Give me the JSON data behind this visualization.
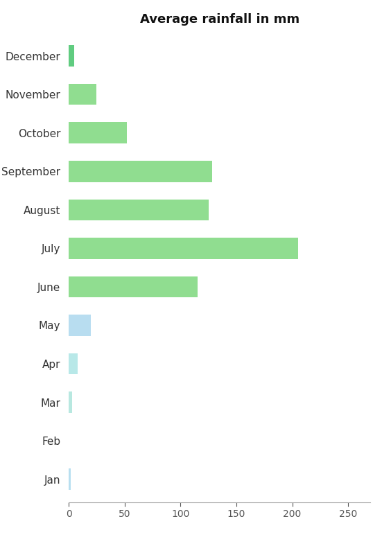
{
  "title": "Average rainfall in mm",
  "months": [
    "Jan",
    "Feb",
    "Mar",
    "Apr",
    "May",
    "June",
    "July",
    "August",
    "September",
    "October",
    "November",
    "December"
  ],
  "values": [
    2,
    0,
    3,
    8,
    20,
    115,
    205,
    125,
    128,
    52,
    25,
    5
  ],
  "bar_colors": [
    "#b8dff0",
    "#ffffff",
    "#b8e8e0",
    "#b8e8e8",
    "#b8ddf0",
    "#90dd90",
    "#90dd90",
    "#90dd90",
    "#90dd90",
    "#90dd90",
    "#90dd90",
    "#60cc80"
  ],
  "xlim": [
    0,
    270
  ],
  "xticks": [
    0,
    50,
    100,
    150,
    200,
    250
  ],
  "title_fontsize": 13,
  "label_fontsize": 11,
  "tick_fontsize": 10,
  "bar_height": 0.55,
  "background_color": "#ffffff",
  "spine_color": "#aaaaaa",
  "tick_color": "#555555"
}
